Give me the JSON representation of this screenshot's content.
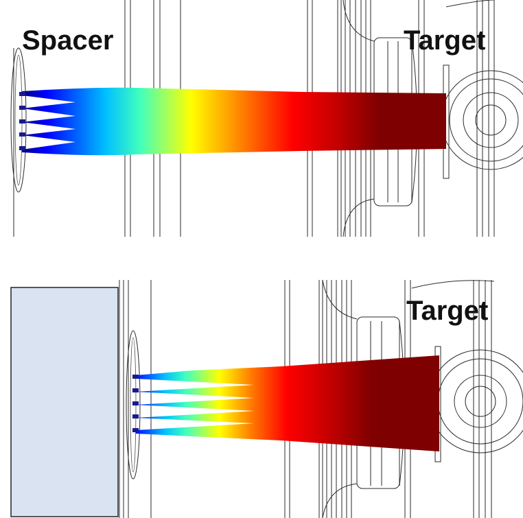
{
  "panels": [
    {
      "id": "top",
      "labels": {
        "spacer": "Spacer",
        "target": "Target"
      }
    },
    {
      "id": "bottom",
      "labels": {
        "target": "Target"
      }
    }
  ],
  "colors": {
    "spacer_block_fill": "#d9e3f2",
    "spacer_block_stroke": "#222222",
    "beam_gradient": [
      "#00007f",
      "#0000ff",
      "#00bfff",
      "#40ffbf",
      "#ffff00",
      "#ff8000",
      "#ff0000",
      "#bf0000",
      "#7f0000"
    ],
    "nozzle": "#1a1a8c"
  }
}
